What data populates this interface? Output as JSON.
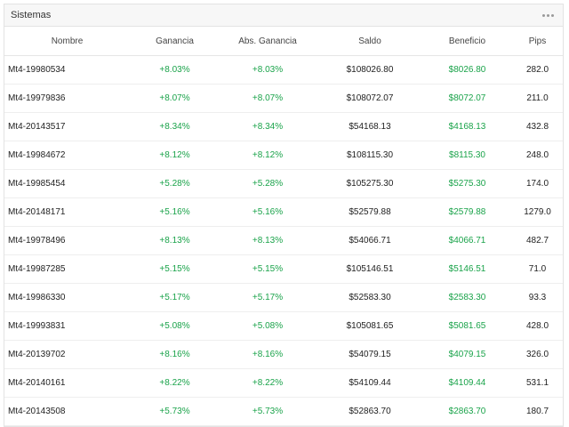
{
  "panel": {
    "title": "Sistemas",
    "menu_icon": "more-horizontal-icon"
  },
  "colors": {
    "positive": "#1aa34a",
    "header_bg": "#f7f7f7",
    "border": "#e3e3e3"
  },
  "table": {
    "columns": [
      "Nombre",
      "Ganancia",
      "Abs. Ganancia",
      "Saldo",
      "Beneficio",
      "Pips"
    ],
    "rows": [
      [
        "Mt4-19980534",
        "+8.03%",
        "+8.03%",
        "$108026.80",
        "$8026.80",
        "282.0"
      ],
      [
        "Mt4-19979836",
        "+8.07%",
        "+8.07%",
        "$108072.07",
        "$8072.07",
        "211.0"
      ],
      [
        "Mt4-20143517",
        "+8.34%",
        "+8.34%",
        "$54168.13",
        "$4168.13",
        "432.8"
      ],
      [
        "Mt4-19984672",
        "+8.12%",
        "+8.12%",
        "$108115.30",
        "$8115.30",
        "248.0"
      ],
      [
        "Mt4-19985454",
        "+5.28%",
        "+5.28%",
        "$105275.30",
        "$5275.30",
        "174.0"
      ],
      [
        "Mt4-20148171",
        "+5.16%",
        "+5.16%",
        "$52579.88",
        "$2579.88",
        "1279.0"
      ],
      [
        "Mt4-19978496",
        "+8.13%",
        "+8.13%",
        "$54066.71",
        "$4066.71",
        "482.7"
      ],
      [
        "Mt4-19987285",
        "+5.15%",
        "+5.15%",
        "$105146.51",
        "$5146.51",
        "71.0"
      ],
      [
        "Mt4-19986330",
        "+5.17%",
        "+5.17%",
        "$52583.30",
        "$2583.30",
        "93.3"
      ],
      [
        "Mt4-19993831",
        "+5.08%",
        "+5.08%",
        "$105081.65",
        "$5081.65",
        "428.0"
      ],
      [
        "Mt4-20139702",
        "+8.16%",
        "+8.16%",
        "$54079.15",
        "$4079.15",
        "326.0"
      ],
      [
        "Mt4-20140161",
        "+8.22%",
        "+8.22%",
        "$54109.44",
        "$4109.44",
        "531.1"
      ],
      [
        "Mt4-20143508",
        "+5.73%",
        "+5.73%",
        "$52863.70",
        "$2863.70",
        "180.7"
      ]
    ]
  }
}
